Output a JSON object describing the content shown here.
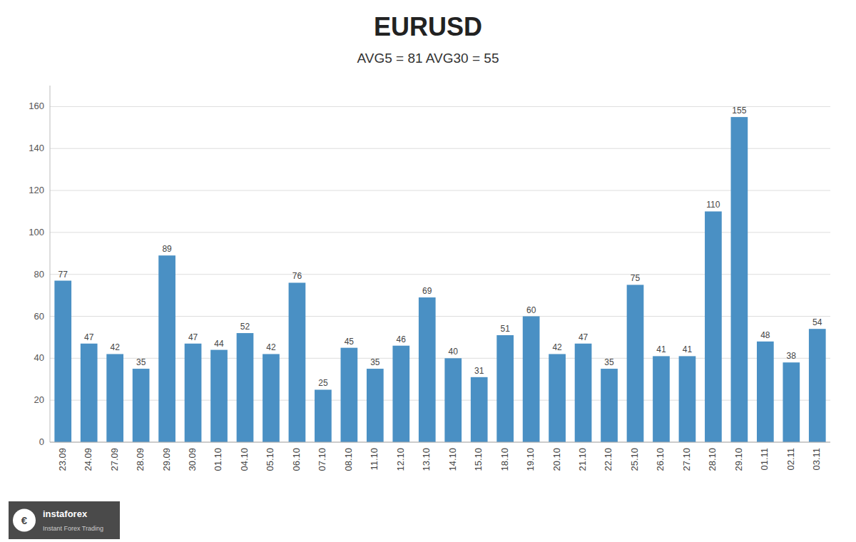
{
  "chart_data": {
    "type": "bar",
    "title": "EURUSD",
    "subtitle": "AVG5 = 81 AVG30 = 55",
    "categories": [
      "23.09",
      "24.09",
      "27.09",
      "28.09",
      "29.09",
      "30.09",
      "01.10",
      "04.10",
      "05.10",
      "06.10",
      "07.10",
      "08.10",
      "11.10",
      "12.10",
      "13.10",
      "14.10",
      "15.10",
      "18.10",
      "19.10",
      "20.10",
      "21.10",
      "22.10",
      "25.10",
      "26.10",
      "27.10",
      "28.10",
      "29.10",
      "01.11",
      "02.11",
      "03.11"
    ],
    "values": [
      77,
      47,
      42,
      35,
      89,
      47,
      44,
      52,
      42,
      76,
      25,
      45,
      35,
      46,
      69,
      40,
      31,
      51,
      60,
      42,
      47,
      35,
      75,
      41,
      41,
      110,
      155,
      48,
      38,
      54
    ],
    "color": "#4a90c4",
    "ylim": [
      0,
      170
    ],
    "yticks": [
      0,
      20,
      40,
      60,
      80,
      100,
      120,
      140,
      160
    ],
    "grid": true,
    "data_labels": true,
    "annotations": [
      "€",
      "instaforex",
      "Instant Forex Trading"
    ]
  }
}
